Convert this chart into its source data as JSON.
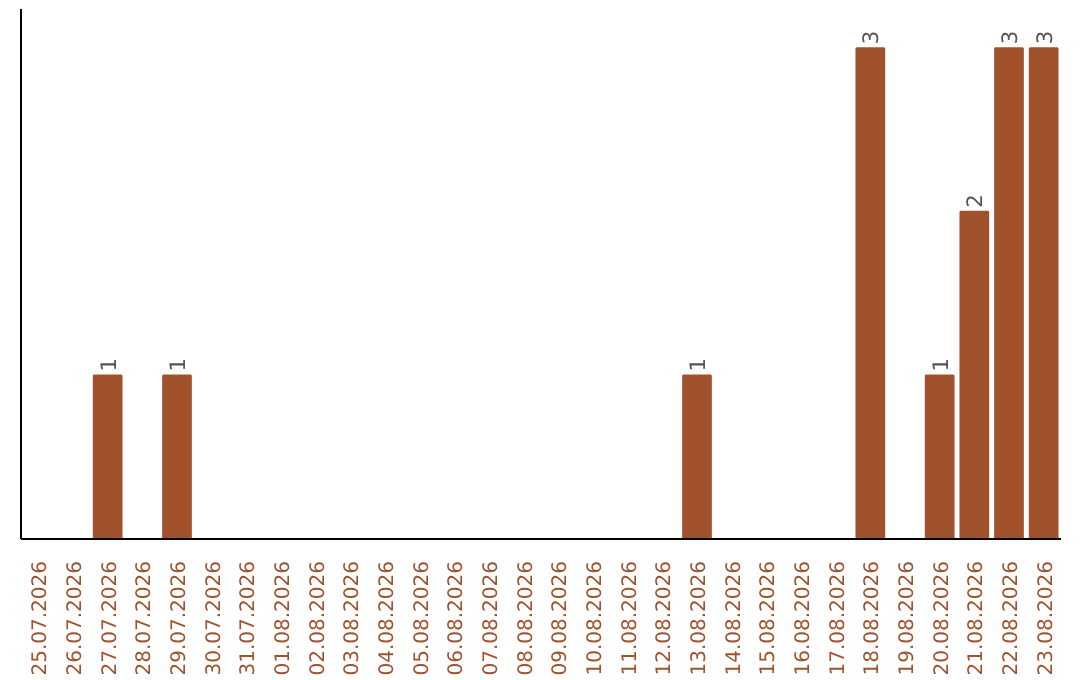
{
  "chart_data": {
    "type": "bar",
    "categories": [
      "25.07.2026",
      "26.07.2026",
      "27.07.2026",
      "28.07.2026",
      "29.07.2026",
      "30.07.2026",
      "31.07.2026",
      "01.08.2026",
      "02.08.2026",
      "03.08.2026",
      "04.08.2026",
      "05.08.2026",
      "06.08.2026",
      "07.08.2026",
      "08.08.2026",
      "09.08.2026",
      "10.08.2026",
      "11.08.2026",
      "12.08.2026",
      "13.08.2026",
      "14.08.2026",
      "15.08.2026",
      "16.08.2026",
      "17.08.2026",
      "18.08.2026",
      "19.08.2026",
      "20.08.2026",
      "21.08.2026",
      "22.08.2026",
      "23.08.2026"
    ],
    "values": [
      0,
      0,
      1,
      0,
      1,
      0,
      0,
      0,
      0,
      0,
      0,
      0,
      0,
      0,
      0,
      0,
      0,
      0,
      0,
      1,
      0,
      0,
      0,
      0,
      3,
      0,
      1,
      2,
      3,
      3
    ],
    "value_labels": [
      null,
      null,
      "1",
      null,
      "1",
      null,
      null,
      null,
      null,
      null,
      null,
      null,
      null,
      null,
      null,
      null,
      null,
      null,
      null,
      "1",
      null,
      null,
      null,
      null,
      "3",
      null,
      "1",
      "2",
      "3",
      "3"
    ],
    "color": "#a0522d",
    "tick_labels": "x",
    "grid": false
  }
}
